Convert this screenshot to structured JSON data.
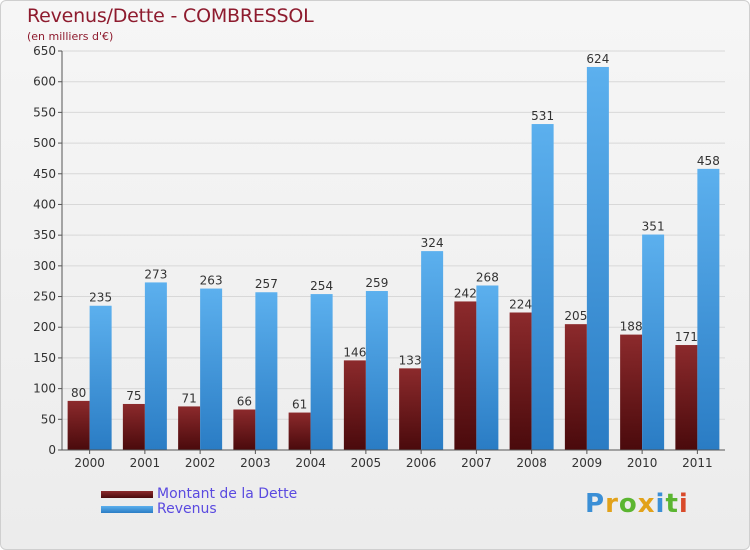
{
  "chart_data": {
    "type": "bar",
    "title": "Revenus/Dette - COMBRESSOL",
    "subtitle": "(en milliers d'€)",
    "categories": [
      "2000",
      "2001",
      "2002",
      "2003",
      "2004",
      "2005",
      "2006",
      "2007",
      "2008",
      "2009",
      "2010",
      "2011"
    ],
    "series": [
      {
        "name": "Montant de la Dette",
        "color": "#7a1a1f",
        "values": [
          80,
          75,
          71,
          66,
          61,
          146,
          133,
          242,
          224,
          205,
          188,
          171
        ]
      },
      {
        "name": "Revenus",
        "color": "#4ca3e4",
        "values": [
          235,
          273,
          263,
          257,
          254,
          259,
          324,
          268,
          531,
          624,
          351,
          458
        ]
      }
    ],
    "ylim": [
      0,
      650
    ],
    "yticks": [
      0,
      50,
      100,
      150,
      200,
      250,
      300,
      350,
      400,
      450,
      500,
      550,
      600,
      650
    ],
    "grid": true,
    "legend_position": "bottom-left"
  },
  "logo": {
    "text": "Proxiti",
    "colors": [
      "#3b8fd6",
      "#e2a21a",
      "#5bb531",
      "#e2a21a",
      "#3b8fd6",
      "#5bb531",
      "#d94a2a"
    ]
  }
}
